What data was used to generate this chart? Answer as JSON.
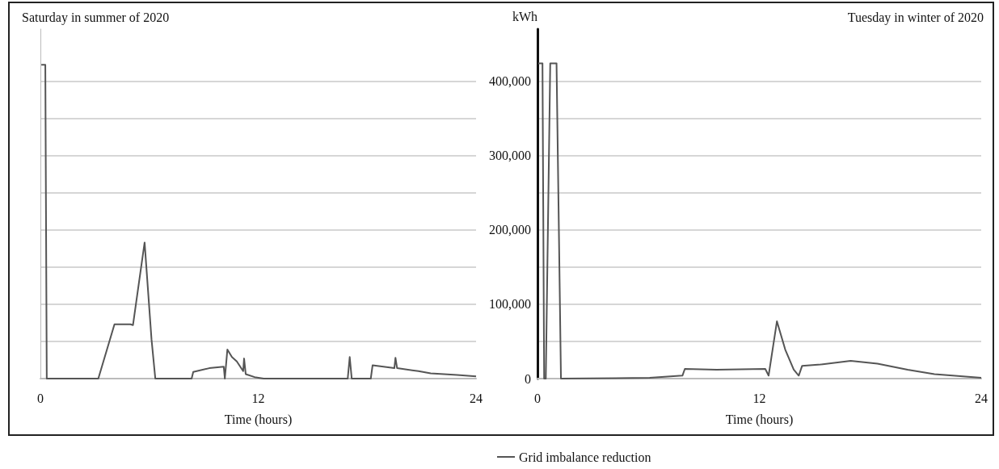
{
  "chart_data": [
    {
      "type": "line",
      "title": "Saturday in summer of 2020",
      "xlabel": "Time (hours)",
      "xlim": [
        0,
        24
      ],
      "xticks": [
        0,
        12,
        24
      ],
      "ylim": [
        0,
        470000
      ],
      "yticks": [
        {
          "value": 0,
          "label": null
        },
        {
          "value": 50000,
          "label": null
        },
        {
          "value": 100000,
          "label": null
        },
        {
          "value": 150000,
          "label": null
        },
        {
          "value": 200000,
          "label": null
        },
        {
          "value": 250000,
          "label": null
        },
        {
          "value": 300000,
          "label": null
        },
        {
          "value": 350000,
          "label": null
        },
        {
          "value": 400000,
          "label": null
        }
      ],
      "tick_labels": "x",
      "grid": "y",
      "legend": false,
      "marker": "none",
      "line_style": "solid",
      "series": [
        {
          "color": "#555555",
          "x": [
            0.05,
            0.27,
            0.35,
            3.19,
            4.08,
            4.96,
            5.1,
            5.74,
            6.12,
            6.33,
            8.33,
            8.42,
            9.3,
            10.1,
            10.16,
            10.3,
            10.55,
            10.82,
            11.17,
            11.22,
            11.31,
            11.8,
            12.3,
            16.93,
            17.04,
            17.15,
            18.2,
            18.3,
            19.5,
            19.56,
            19.65,
            20.83,
            21.5,
            22.96,
            24
          ],
          "values": [
            422000,
            422000,
            0,
            0,
            73000,
            73000,
            72000,
            183000,
            53000,
            0,
            0,
            9000,
            14000,
            16000,
            0,
            39000,
            29000,
            23000,
            10000,
            27000,
            6000,
            2000,
            0,
            0,
            29000,
            0,
            0,
            18000,
            14000,
            28000,
            14000,
            10000,
            7000,
            5000,
            3000
          ]
        }
      ]
    },
    {
      "type": "line",
      "title": "Tuesday in winter of 2020",
      "xlabel": "Time (hours)",
      "ylabel": "kWh",
      "xlim": [
        0,
        24
      ],
      "xticks": [
        0,
        12,
        24
      ],
      "ylim": [
        0,
        470000
      ],
      "yticks": [
        0,
        {
          "value": 50000,
          "label": null
        },
        {
          "value": 100000,
          "label": "100,000"
        },
        {
          "value": 150000,
          "label": null
        },
        {
          "value": 200000,
          "label": "200,000"
        },
        {
          "value": 250000,
          "label": null
        },
        {
          "value": 300000,
          "label": "300,000"
        },
        {
          "value": 350000,
          "label": null
        },
        {
          "value": 400000,
          "label": "400,000"
        }
      ],
      "grid": "y",
      "legend": "bottom",
      "marker": "none",
      "line_style": "solid",
      "series": [
        {
          "name": "Grid imbalance reduction",
          "color": "#555555",
          "x": [
            0.04,
            0.27,
            0.36,
            0.45,
            0.69,
            1.03,
            1.27,
            6.07,
            7.84,
            7.97,
            9.69,
            12.32,
            12.5,
            12.95,
            13.4,
            13.86,
            14.13,
            14.31,
            15.31,
            16.94,
            18.39,
            20.02,
            21.47,
            24
          ],
          "values": [
            424000,
            424000,
            0,
            0,
            424000,
            424000,
            0,
            1000,
            4000,
            13000,
            12000,
            13000,
            4000,
            77000,
            39000,
            12000,
            4000,
            17000,
            19000,
            24000,
            20000,
            12000,
            6000,
            1000
          ]
        }
      ]
    }
  ]
}
